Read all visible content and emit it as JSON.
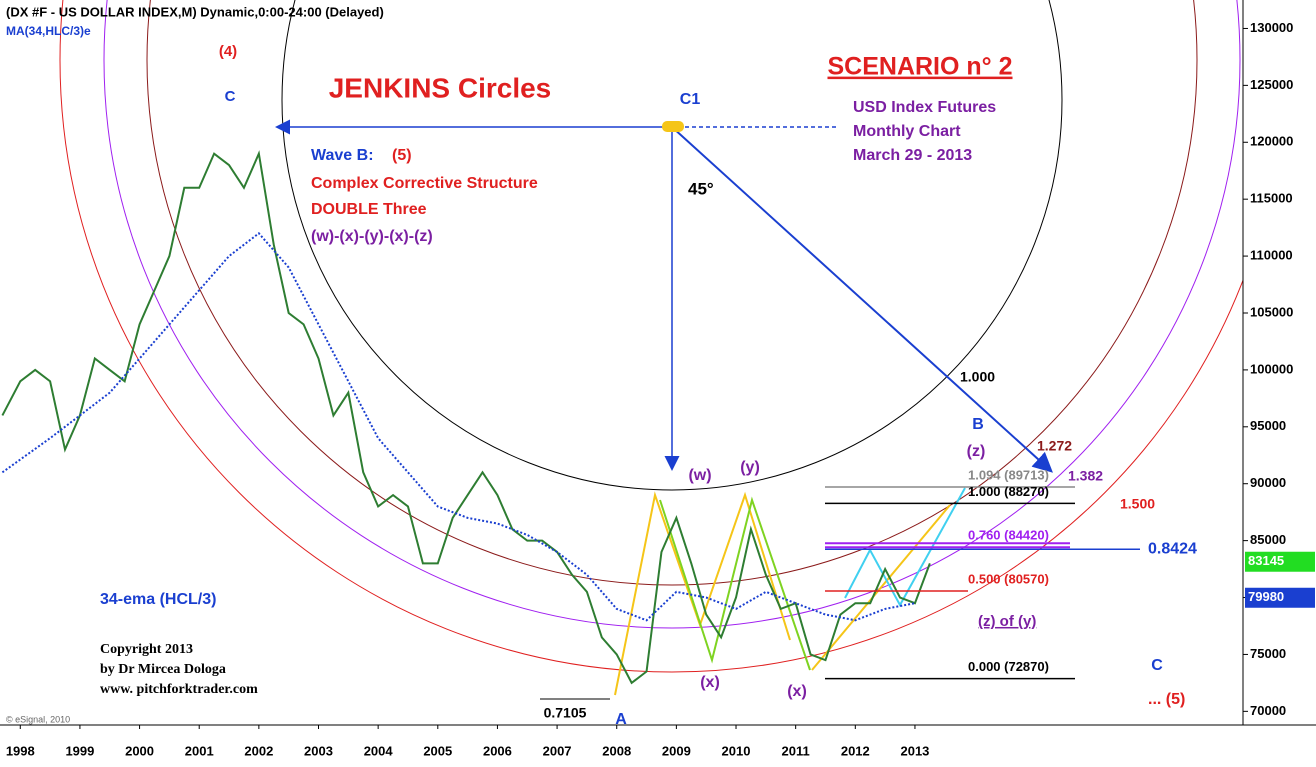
{
  "chart_data": {
    "type": "line",
    "xlim": [
      1997.66,
      2018.5
    ],
    "ylim": [
      68800,
      132500
    ],
    "xticks": [
      1998,
      1999,
      2000,
      2001,
      2002,
      2003,
      2004,
      2005,
      2006,
      2007,
      2008,
      2009,
      2010,
      2011,
      2012,
      2013
    ],
    "yticks": [
      70000,
      75000,
      80000,
      85000,
      90000,
      95000,
      100000,
      105000,
      110000,
      115000,
      120000,
      125000,
      130000
    ],
    "series": [
      {
        "color": "#2e7d32",
        "x": [
          1997.7,
          1998.0,
          1998.25,
          1998.5,
          1998.75,
          1999.0,
          1999.25,
          1999.5,
          1999.75,
          2000.0,
          2000.25,
          2000.5,
          2000.75,
          2001.0,
          2001.25,
          2001.5,
          2001.75,
          2002.0,
          2002.25,
          2002.5,
          2002.75,
          2003.0,
          2003.25,
          2003.5,
          2003.75,
          2004.0,
          2004.25,
          2004.5,
          2004.75,
          2005.0,
          2005.25,
          2005.5,
          2005.75,
          2006.0,
          2006.25,
          2006.5,
          2006.75,
          2007.0,
          2007.25,
          2007.5,
          2007.75,
          2008.0,
          2008.25,
          2008.5,
          2008.75,
          2009.0,
          2009.25,
          2009.5,
          2009.75,
          2010.0,
          2010.25,
          2010.5,
          2010.75,
          2011.0,
          2011.25,
          2011.5,
          2011.75,
          2012.0,
          2012.25,
          2012.5,
          2012.75,
          2013.0,
          2013.25
        ],
        "values": [
          96000,
          99000,
          100000,
          99000,
          93000,
          96000,
          101000,
          100000,
          99000,
          104000,
          107000,
          110000,
          116000,
          116000,
          119000,
          118000,
          116000,
          119000,
          111000,
          105000,
          104000,
          101000,
          96000,
          98000,
          91000,
          88000,
          89000,
          88000,
          83000,
          83000,
          87000,
          89000,
          91000,
          89000,
          86000,
          85000,
          85000,
          84000,
          82000,
          80500,
          76500,
          75000,
          72500,
          73500,
          84000,
          87000,
          83000,
          78500,
          76500,
          80000,
          86000,
          82000,
          79000,
          79500,
          75000,
          74500,
          78500,
          79500,
          79500,
          82500,
          80000,
          79500,
          83000
        ]
      },
      {
        "name": "MA(34,HLC/3)e",
        "color": "#1a3fd0",
        "x": [
          1997.7,
          1998.5,
          1999.5,
          2000.5,
          2001.5,
          2002.0,
          2002.5,
          2003.0,
          2003.5,
          2004.0,
          2004.5,
          2005.0,
          2005.5,
          2006.0,
          2006.5,
          2007.0,
          2007.5,
          2008.0,
          2008.5,
          2009.0,
          2009.5,
          2010.0,
          2010.5,
          2011.0,
          2011.5,
          2012.0,
          2012.5,
          2013.0
        ],
        "values": [
          91000,
          94000,
          98000,
          104000,
          110000,
          112000,
          109000,
          104000,
          99000,
          94000,
          91000,
          88000,
          87000,
          86500,
          85500,
          84000,
          82000,
          79000,
          78000,
          80500,
          80000,
          79000,
          80500,
          79500,
          78500,
          78000,
          79000,
          79500
        ]
      }
    ],
    "levels": [
      {
        "label": "1.094 (89713)",
        "value": 89713,
        "color": "#888888"
      },
      {
        "label": "1.000 (88270)",
        "value": 88270,
        "color": "#000000"
      },
      {
        "label": "0.760 (84420)",
        "value": 84420,
        "color": "#a020f0"
      },
      {
        "label": "0.500 (80570)",
        "value": 80570,
        "color": "#e02020"
      },
      {
        "label": "0.8424",
        "value": 84240,
        "color": "#1a3fd0"
      },
      {
        "label": "0.000 (72870)",
        "value": 72870,
        "color": "#000000"
      }
    ],
    "price_markers": [
      {
        "value": 83145,
        "color": "#22dd22"
      },
      {
        "value": 79980,
        "color": "#1a3fd0"
      }
    ],
    "annotations": [
      {
        "text": "(DX #F - US DOLLAR INDEX,M) Dynamic,0:00-24:00 (Delayed)",
        "color": "#000000"
      },
      {
        "text": "(4)",
        "color": "#e02020"
      },
      {
        "text": "C",
        "color": "#1a3fd0"
      },
      {
        "text": "JENKINS Circles",
        "color": "#e02020"
      },
      {
        "text": "C1",
        "color": "#1a3fd0"
      },
      {
        "text": "SCENARIO n° 2",
        "color": "#e02020"
      },
      {
        "text": "USD Index Futures",
        "color": "#7b1fa2"
      },
      {
        "text": "Monthly Chart",
        "color": "#7b1fa2"
      },
      {
        "text": "March 29 - 2013",
        "color": "#7b1fa2"
      },
      {
        "text": "Wave B:",
        "color": "#1a3fd0"
      },
      {
        "text": "(5)",
        "color": "#e02020"
      },
      {
        "text": "Complex Corrective Structure",
        "color": "#e02020"
      },
      {
        "text": "DOUBLE Three",
        "color": "#e02020"
      },
      {
        "text": "(w)-(x)-(y)-(x)-(z)",
        "color": "#7b1fa2"
      },
      {
        "text": "45°",
        "color": "#000000"
      },
      {
        "text": "1.000",
        "color": "#000000"
      },
      {
        "text": "B",
        "color": "#1a3fd0"
      },
      {
        "text": "(z)",
        "color": "#7b1fa2"
      },
      {
        "text": "1.272",
        "color": "#8b1a1a"
      },
      {
        "text": "1.382",
        "color": "#7b1fa2"
      },
      {
        "text": "1.500",
        "color": "#e02020"
      },
      {
        "text": "(z) of (y)",
        "color": "#7b1fa2"
      },
      {
        "text": "C",
        "color": "#1a3fd0"
      },
      {
        "text": "... (5)",
        "color": "#e02020"
      },
      {
        "text": "(w)",
        "color": "#7b1fa2"
      },
      {
        "text": "(y)",
        "color": "#7b1fa2"
      },
      {
        "text": "(x)",
        "color": "#7b1fa2"
      },
      {
        "text": "(x)",
        "color": "#7b1fa2"
      },
      {
        "text": "A",
        "color": "#1a3fd0"
      },
      {
        "text": "0.7105",
        "color": "#000000"
      },
      {
        "text": "34-ema (HCL/3)",
        "color": "#1a3fd0"
      },
      {
        "text": "Copyright 2013",
        "color": "#000000"
      },
      {
        "text": "by Dr Mircea Dologa",
        "color": "#000000"
      },
      {
        "text": "www. pitchforktrader.com",
        "color": "#000000"
      },
      {
        "text": "© eSignal, 2010",
        "color": "#666666"
      }
    ]
  }
}
